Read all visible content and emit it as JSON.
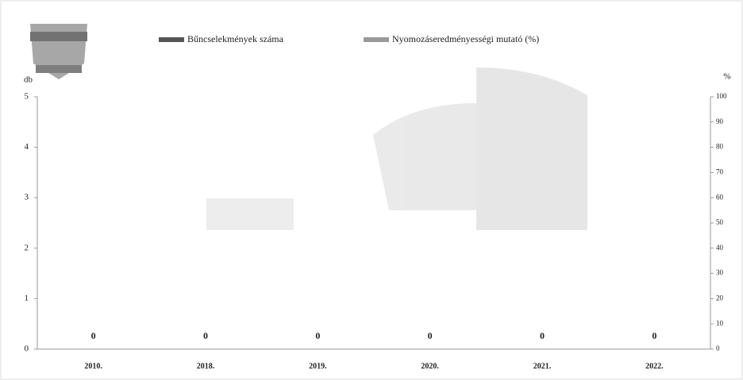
{
  "chart_data": {
    "type": "bar",
    "categories": [
      "2010.",
      "2018.",
      "2019.",
      "2020.",
      "2021.",
      "2022."
    ],
    "series": [
      {
        "name": "Bűncselekmények száma",
        "color": "#555555",
        "values": [
          0,
          0,
          0,
          0,
          0,
          0
        ]
      },
      {
        "name": "Nyomozáseredményességi mutató (%)",
        "color": "#9a9a9a",
        "values": [
          0,
          0,
          0,
          0,
          0,
          0
        ],
        "axis": "y2"
      }
    ],
    "y_label": "db",
    "y2_label": "%",
    "ylim": [
      0,
      5
    ],
    "yticks": [
      0,
      1,
      2,
      3,
      4,
      5
    ],
    "y2lim": [
      0,
      100
    ],
    "y2ticks": [
      0,
      10,
      20,
      30,
      40,
      50,
      60,
      70,
      80,
      90,
      100
    ],
    "grid": false
  }
}
